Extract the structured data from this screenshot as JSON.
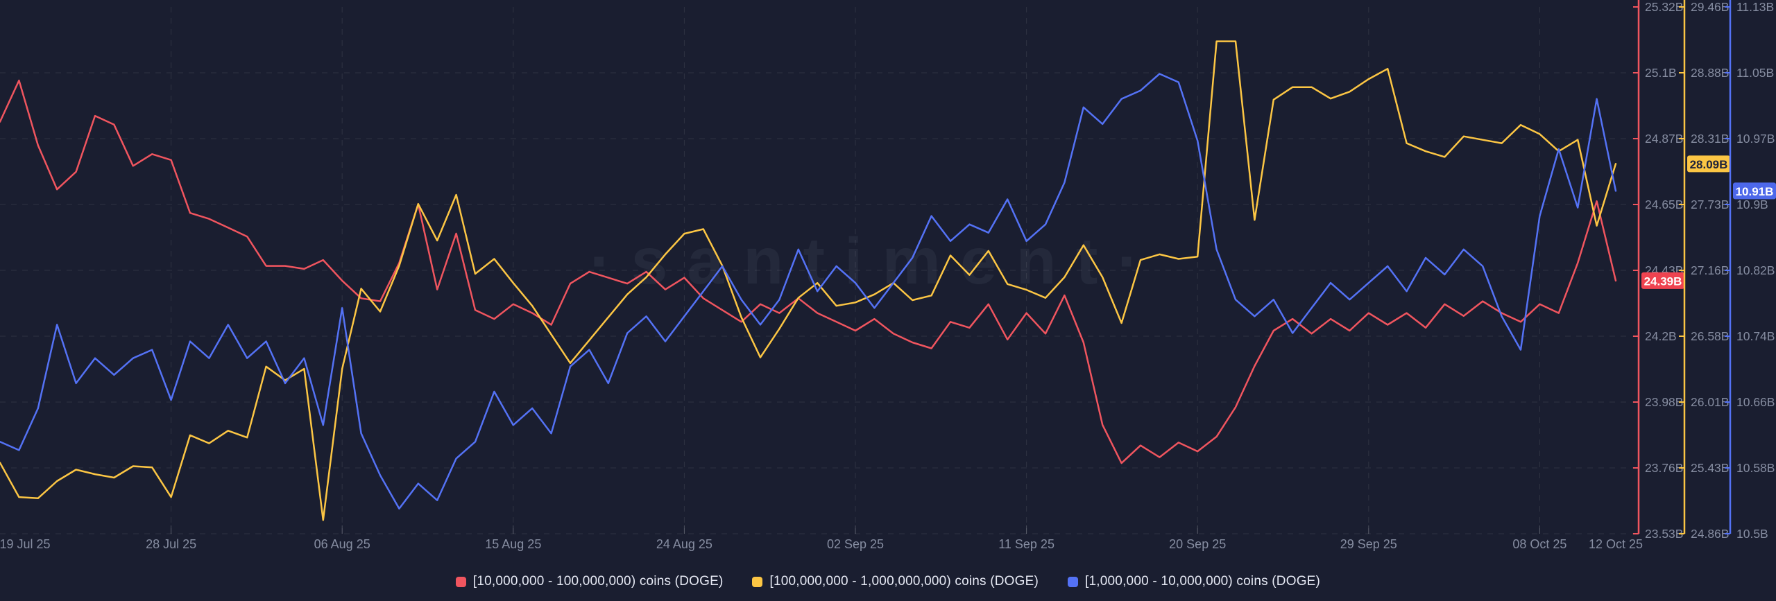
{
  "watermark": "·santiment·",
  "background_color": "#1a1e30",
  "text_color": "#868da1",
  "legend_text_color": "#e6e9f4",
  "grid_color": "rgba(255,255,255,0.09)",
  "tick_stub_color": "rgba(255,255,255,0.22)",
  "chart_data": {
    "type": "line",
    "grid": true,
    "legend_position": "bottom",
    "x_axis": {
      "tick_labels": [
        "19 Jul 25",
        "28 Jul 25",
        "06 Aug 25",
        "15 Aug 25",
        "24 Aug 25",
        "02 Sep 25",
        "11 Sep 25",
        "20 Sep 25",
        "29 Sep 25",
        "08 Oct 25",
        "12 Oct 25"
      ],
      "tick_day_indices": [
        0,
        9,
        18,
        27,
        36,
        45,
        54,
        63,
        72,
        81,
        85
      ]
    },
    "series": [
      {
        "key": "doge-10m-100m",
        "name": "[10,000,000 - 100,000,000) coins (DOGE)",
        "color": "#f0555f",
        "badge_color": "#ef4350",
        "badge_text_color": "#ffffff",
        "axis_min": 23.53,
        "axis_max": 25.32,
        "axis_tick_labels": [
          "25.32B",
          "25.1B",
          "24.87B",
          "24.65B",
          "24.43B",
          "24.2B",
          "23.98B",
          "23.76B",
          "23.53B"
        ],
        "last_value_label": "24.39B",
        "values": [
          24.93,
          25.07,
          24.85,
          24.7,
          24.76,
          24.95,
          24.92,
          24.78,
          24.82,
          24.8,
          24.62,
          24.6,
          24.57,
          24.54,
          24.44,
          24.44,
          24.43,
          24.46,
          24.39,
          24.33,
          24.32,
          24.45,
          24.65,
          24.36,
          24.55,
          24.29,
          24.26,
          24.31,
          24.28,
          24.24,
          24.38,
          24.42,
          24.4,
          24.38,
          24.42,
          24.36,
          24.4,
          24.33,
          24.29,
          24.25,
          24.31,
          24.28,
          24.33,
          24.28,
          24.25,
          24.22,
          24.26,
          24.21,
          24.18,
          24.16,
          24.25,
          24.23,
          24.31,
          24.19,
          24.28,
          24.21,
          24.34,
          24.18,
          23.9,
          23.77,
          23.83,
          23.79,
          23.84,
          23.81,
          23.86,
          23.96,
          24.1,
          24.22,
          24.26,
          24.21,
          24.26,
          24.22,
          24.28,
          24.24,
          24.28,
          24.23,
          24.31,
          24.27,
          24.32,
          24.28,
          24.25,
          24.31,
          24.28,
          24.45,
          24.66,
          24.39
        ]
      },
      {
        "key": "doge-100m-1b",
        "name": "[100,000,000 - 1,000,000,000) coins (DOGE)",
        "color": "#fcc644",
        "badge_color": "#fcc644",
        "badge_text_color": "#20243a",
        "axis_min": 24.86,
        "axis_max": 29.46,
        "axis_tick_labels": [
          "29.46B",
          "28.88B",
          "28.31B",
          "27.73B",
          "27.16B",
          "26.58B",
          "26.01B",
          "25.43B",
          "24.86B"
        ],
        "last_value_label": "28.09B",
        "values": [
          25.48,
          25.18,
          25.17,
          25.32,
          25.42,
          25.38,
          25.35,
          25.45,
          25.44,
          25.18,
          25.72,
          25.65,
          25.76,
          25.7,
          26.32,
          26.2,
          26.3,
          24.98,
          26.3,
          27.0,
          26.8,
          27.2,
          27.74,
          27.42,
          27.82,
          27.13,
          27.26,
          27.05,
          26.85,
          26.6,
          26.35,
          26.55,
          26.75,
          26.95,
          27.1,
          27.3,
          27.48,
          27.52,
          27.2,
          26.75,
          26.4,
          26.65,
          26.92,
          27.05,
          26.85,
          26.88,
          26.95,
          27.05,
          26.9,
          26.94,
          27.29,
          27.12,
          27.33,
          27.04,
          26.99,
          26.92,
          27.1,
          27.38,
          27.1,
          26.7,
          27.25,
          27.3,
          27.26,
          27.28,
          29.16,
          29.16,
          27.6,
          28.65,
          28.76,
          28.76,
          28.66,
          28.72,
          28.83,
          28.92,
          28.27,
          28.2,
          28.15,
          28.33,
          28.3,
          28.27,
          28.43,
          28.35,
          28.2,
          28.3,
          27.55,
          28.09
        ]
      },
      {
        "key": "doge-1m-10m",
        "name": "[1,000,000 - 10,000,000) coins (DOGE)",
        "color": "#5472f5",
        "badge_color": "#4d68ea",
        "badge_text_color": "#ffffff",
        "axis_min": 10.5,
        "axis_max": 11.13,
        "axis_tick_labels": [
          "11.13B",
          "11.05B",
          "10.97B",
          "10.9B",
          "10.82B",
          "10.74B",
          "10.66B",
          "10.58B",
          "10.5B"
        ],
        "last_value_label": "10.91B",
        "values": [
          10.61,
          10.6,
          10.65,
          10.75,
          10.68,
          10.71,
          10.69,
          10.71,
          10.72,
          10.66,
          10.73,
          10.71,
          10.75,
          10.71,
          10.73,
          10.68,
          10.71,
          10.63,
          10.77,
          10.62,
          10.57,
          10.53,
          10.56,
          10.54,
          10.59,
          10.61,
          10.67,
          10.63,
          10.65,
          10.62,
          10.7,
          10.72,
          10.68,
          10.74,
          10.76,
          10.73,
          10.76,
          10.79,
          10.82,
          10.78,
          10.75,
          10.78,
          10.84,
          10.79,
          10.82,
          10.8,
          10.77,
          10.8,
          10.83,
          10.88,
          10.85,
          10.87,
          10.86,
          10.9,
          10.85,
          10.87,
          10.92,
          11.01,
          10.99,
          11.02,
          11.03,
          11.05,
          11.04,
          10.97,
          10.84,
          10.78,
          10.76,
          10.78,
          10.74,
          10.77,
          10.8,
          10.78,
          10.8,
          10.82,
          10.79,
          10.83,
          10.81,
          10.84,
          10.82,
          10.76,
          10.72,
          10.88,
          10.96,
          10.89,
          11.02,
          10.91
        ]
      }
    ]
  }
}
